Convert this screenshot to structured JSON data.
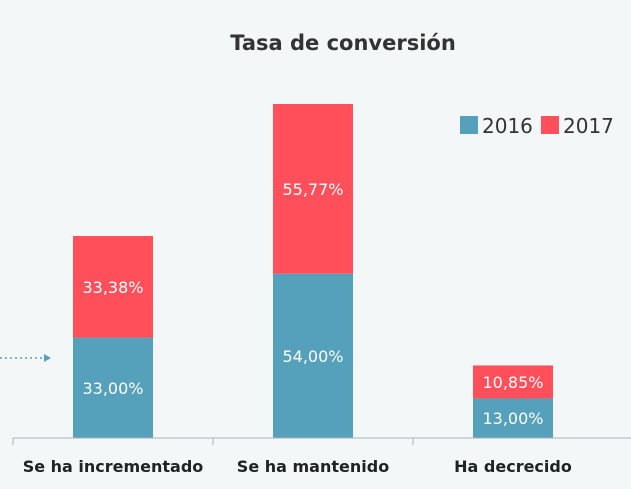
{
  "chart_data": {
    "type": "bar",
    "stacked": true,
    "title": "Tasa de conversión",
    "categories": [
      "Se ha incrementado",
      "Se ha mantenido",
      "Ha decrecido"
    ],
    "series": [
      {
        "name": "2016",
        "color": "#55a0bb",
        "values": [
          33.0,
          54.0,
          13.0
        ],
        "labels": [
          "33,00%",
          "54,00%",
          "13,00%"
        ]
      },
      {
        "name": "2017",
        "color": "#ff4f5a",
        "values": [
          33.38,
          55.77,
          10.85
        ],
        "labels": [
          "33,38%",
          "55,77%",
          "10,85%"
        ]
      }
    ],
    "ylim": [
      0,
      109.77
    ],
    "grid": false,
    "legend_position": "top-right",
    "colors": {
      "background": "#f3f7f7",
      "axis": "#a9b3b6",
      "title_text": "#333333",
      "category_text": "#222222",
      "bar_label_text": "#ffffff",
      "arrow": "#55a0bb"
    }
  }
}
